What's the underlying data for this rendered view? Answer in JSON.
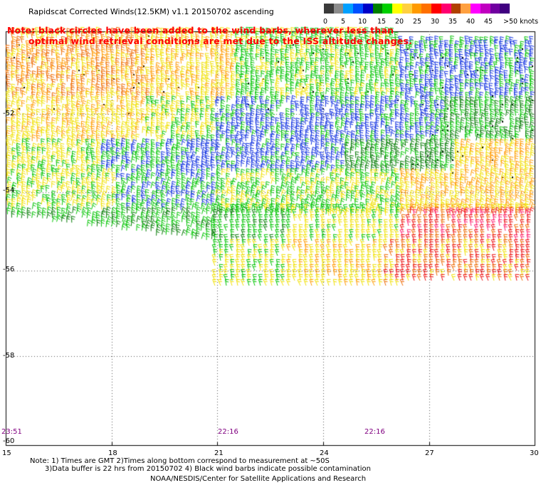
{
  "title": "Rapidscat Corrected Winds(12.5KM) v1.1 20150702 ascending",
  "note_lines": [
    "Note: black circles have been added to the wind barbs, wherever less than",
    "optimal wind retrieval conditions are met due to the ISS altitude changes."
  ],
  "legend": {
    "labels": [
      "0",
      "5",
      "10",
      "15",
      "20",
      "25",
      "30",
      "35",
      "40",
      "45",
      ">50 knots"
    ],
    "colors": [
      "#3a3a3a",
      "#8c8c8c",
      "#00a0ff",
      "#0050ff",
      "#0000c8",
      "#008000",
      "#00d000",
      "#ffff00",
      "#ffd040",
      "#ff9a00",
      "#ff7000",
      "#ff0000",
      "#ff0070",
      "#b04000",
      "#ffa040",
      "#ff00ff",
      "#c000c0",
      "#7000a0",
      "#400080"
    ]
  },
  "latitude_labels": [
    "-52",
    "-54",
    "-56",
    "-58",
    "-60"
  ],
  "longitude_labels": [
    "15",
    "18",
    "21",
    "24",
    "27",
    "30"
  ],
  "pass_times": [
    "23:51",
    "22:16",
    "22:16"
  ],
  "footnotes": [
    "Note: 1) Times are GMT 2)Times along bottom correspond to measurement at ~50S",
    "3)Data buffer is 22 hrs from 20150702 4) Black wind barbs indicate possible contamination",
    "NOAA/NESDIS/Center for Satellite Applications and Research"
  ],
  "icons": [
    "wind-barb-icon",
    "contamination-circle-icon"
  ]
}
